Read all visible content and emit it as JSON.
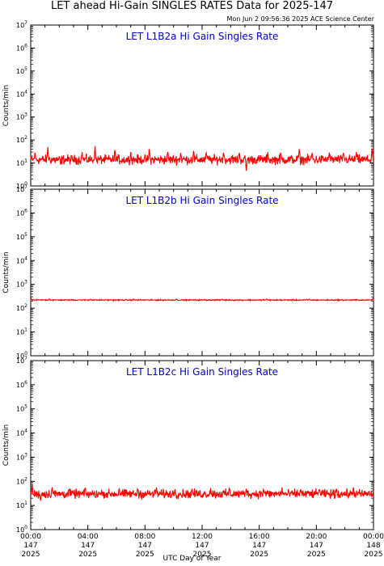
{
  "figure": {
    "title": "LET ahead Hi-Gain SINGLES RATES Data for 2025-147",
    "timestamp": "Mon Jun  2 09:56:36 2025 ACE Science Center",
    "xlabel": "UTC Day of Year"
  },
  "colors": {
    "trace": "#ff0000",
    "panel_title": "#0000cc",
    "axis": "#000000"
  },
  "chart_data": [
    {
      "type": "line",
      "title": "LET L1B2a Hi Gain Singles Rate",
      "ylabel": "Counts/min",
      "yscale": "log",
      "ylim": [
        1,
        10000000
      ],
      "xlim": [
        0,
        24
      ],
      "series": [
        {
          "x_range": [
            0,
            24
          ],
          "baseline": 14,
          "noise_log10": 0.1,
          "spikes": [
            {
              "x": 0.3,
              "y": 30
            },
            {
              "x": 1.2,
              "y": 50
            },
            {
              "x": 2.1,
              "y": 8
            },
            {
              "x": 3.6,
              "y": 30
            },
            {
              "x": 4.5,
              "y": 60
            },
            {
              "x": 5.9,
              "y": 40
            },
            {
              "x": 7.0,
              "y": 35
            },
            {
              "x": 8.3,
              "y": 45
            },
            {
              "x": 9.6,
              "y": 30
            },
            {
              "x": 10.5,
              "y": 30
            },
            {
              "x": 11.4,
              "y": 40
            },
            {
              "x": 12.3,
              "y": 30
            },
            {
              "x": 13.5,
              "y": 30
            },
            {
              "x": 14.6,
              "y": 30
            },
            {
              "x": 15.1,
              "y": 4
            },
            {
              "x": 16.6,
              "y": 30
            },
            {
              "x": 17.5,
              "y": 30
            },
            {
              "x": 18.8,
              "y": 40
            },
            {
              "x": 19.7,
              "y": 30
            },
            {
              "x": 20.9,
              "y": 30
            },
            {
              "x": 21.9,
              "y": 30
            },
            {
              "x": 22.8,
              "y": 30
            },
            {
              "x": 23.9,
              "y": 50
            }
          ]
        }
      ]
    },
    {
      "type": "line",
      "title": "LET L1B2b Hi Gain Singles Rate",
      "ylabel": "Counts/min",
      "yscale": "log",
      "ylim": [
        1,
        10000000
      ],
      "xlim": [
        0,
        24
      ],
      "series": [
        {
          "x_range": [
            0,
            24
          ],
          "baseline": 220,
          "noise_log10": 0.012,
          "spikes": [
            {
              "x": 0.05,
              "y": 250
            },
            {
              "x": 1.3,
              "y": 250
            },
            {
              "x": 4.2,
              "y": 245
            },
            {
              "x": 7.2,
              "y": 245
            },
            {
              "x": 10.2,
              "y": 245
            },
            {
              "x": 13.4,
              "y": 245
            },
            {
              "x": 16.5,
              "y": 245
            },
            {
              "x": 19.5,
              "y": 245
            },
            {
              "x": 23.95,
              "y": 255
            }
          ]
        }
      ]
    },
    {
      "type": "line",
      "title": "LET L1B2c Hi Gain Singles Rate",
      "ylabel": "Counts/min",
      "yscale": "log",
      "ylim": [
        1,
        10000000
      ],
      "xlim": [
        0,
        24
      ],
      "series": [
        {
          "x_range": [
            0,
            24
          ],
          "baseline": 30,
          "noise_log10": 0.09,
          "spikes": [
            {
              "x": 0.1,
              "y": 70
            },
            {
              "x": 0.7,
              "y": 15
            },
            {
              "x": 1.5,
              "y": 60
            },
            {
              "x": 2.7,
              "y": 50
            },
            {
              "x": 3.8,
              "y": 55
            },
            {
              "x": 5.0,
              "y": 40
            },
            {
              "x": 6.2,
              "y": 55
            },
            {
              "x": 7.5,
              "y": 50
            },
            {
              "x": 8.8,
              "y": 55
            },
            {
              "x": 10.1,
              "y": 50
            },
            {
              "x": 11.3,
              "y": 50
            },
            {
              "x": 12.6,
              "y": 55
            },
            {
              "x": 13.9,
              "y": 55
            },
            {
              "x": 15.1,
              "y": 55
            },
            {
              "x": 16.3,
              "y": 50
            },
            {
              "x": 17.6,
              "y": 55
            },
            {
              "x": 18.9,
              "y": 50
            },
            {
              "x": 20.2,
              "y": 55
            },
            {
              "x": 21.4,
              "y": 55
            },
            {
              "x": 22.6,
              "y": 60
            }
          ]
        }
      ]
    }
  ],
  "x_ticks": [
    {
      "time": "00:00",
      "doy": "147",
      "year": "2025",
      "hour": 0
    },
    {
      "time": "04:00",
      "doy": "147",
      "year": "2025",
      "hour": 4
    },
    {
      "time": "08:00",
      "doy": "147",
      "year": "2025",
      "hour": 8
    },
    {
      "time": "12:00",
      "doy": "147",
      "year": "2025",
      "hour": 12
    },
    {
      "time": "16:00",
      "doy": "147",
      "year": "2025",
      "hour": 16
    },
    {
      "time": "20:00",
      "doy": "147",
      "year": "2025",
      "hour": 20
    },
    {
      "time": "00:00",
      "doy": "148",
      "year": "2025",
      "hour": 24
    }
  ]
}
